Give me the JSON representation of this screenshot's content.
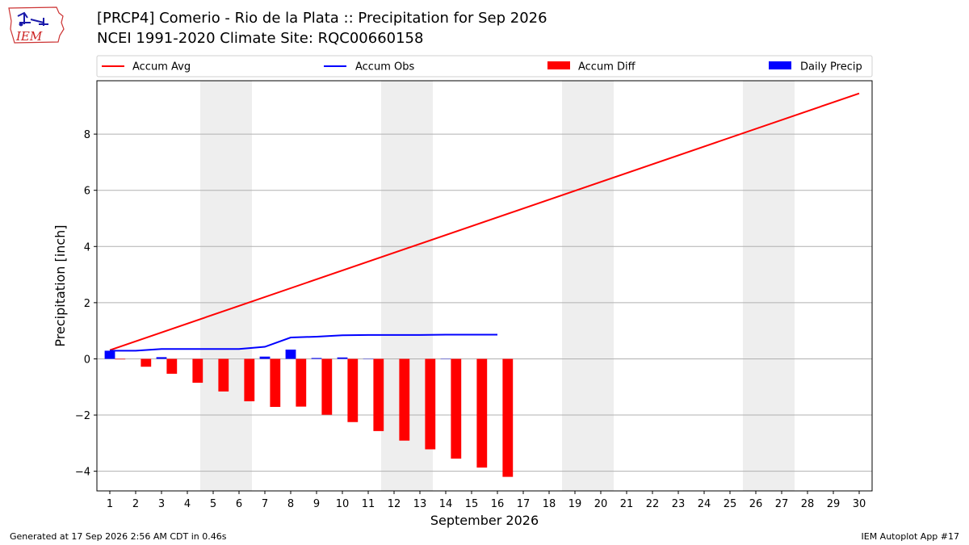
{
  "header": {
    "title_line1": "[PRCP4] Comerio - Rio de la Plata :: Precipitation for Sep 2026",
    "title_line2": "NCEI 1991-2020 Climate Site: RQC00660158"
  },
  "logo": {
    "text": "IEM"
  },
  "footer": {
    "generated": "Generated at 17 Sep 2026 2:56 AM CDT in 0.46s",
    "app": "IEM Autoplot App #17"
  },
  "colors": {
    "avg": "#ff0000",
    "obs": "#0000ff",
    "diff": "#ff0000",
    "daily": "#0000ff",
    "weekend": "#eeeeee",
    "grid": "#b0b0b0"
  },
  "chart_data": {
    "type": "bar",
    "xlabel": "September 2026",
    "ylabel": "Precipitation [inch]",
    "xlim": [
      0.5,
      30.5
    ],
    "ylim": [
      -4.7,
      9.9
    ],
    "yticks": [
      -4,
      -2,
      0,
      2,
      4,
      6,
      8
    ],
    "ytick_labels": [
      "−4",
      "−2",
      "0",
      "2",
      "4",
      "6",
      "8"
    ],
    "grid": true,
    "legend_placement": "top, above plot",
    "legend": [
      "Accum Avg",
      "Accum Obs",
      "Accum Diff",
      "Daily Precip"
    ],
    "x": [
      1,
      2,
      3,
      4,
      5,
      6,
      7,
      8,
      9,
      10,
      11,
      12,
      13,
      14,
      15,
      16,
      17,
      18,
      19,
      20,
      21,
      22,
      23,
      24,
      25,
      26,
      27,
      28,
      29,
      30
    ],
    "weekend_spans": [
      [
        4.5,
        6.5
      ],
      [
        11.5,
        13.5
      ],
      [
        18.5,
        20.5
      ],
      [
        25.5,
        27.5
      ]
    ],
    "series": [
      {
        "name": "Accum Avg",
        "kind": "line",
        "x": [
          1,
          30
        ],
        "values": [
          0.31,
          9.45
        ]
      },
      {
        "name": "Accum Obs",
        "kind": "line",
        "x": [
          1,
          2,
          3,
          4,
          5,
          6,
          7,
          8,
          9,
          10,
          11,
          12,
          13,
          14,
          15,
          16
        ],
        "values": [
          0.29,
          0.29,
          0.35,
          0.35,
          0.35,
          0.35,
          0.43,
          0.76,
          0.79,
          0.84,
          0.85,
          0.85,
          0.85,
          0.86,
          0.86,
          0.86
        ]
      },
      {
        "name": "Accum Diff",
        "kind": "bar",
        "x": [
          1,
          2,
          3,
          4,
          5,
          6,
          7,
          8,
          9,
          10,
          11,
          12,
          13,
          14,
          15,
          16
        ],
        "values": [
          -0.02,
          -0.28,
          -0.53,
          -0.85,
          -1.16,
          -1.51,
          -1.71,
          -1.7,
          -1.99,
          -2.25,
          -2.57,
          -2.91,
          -3.22,
          -3.55,
          -3.87,
          -4.2
        ]
      },
      {
        "name": "Daily Precip",
        "kind": "bar",
        "x": [
          1,
          2,
          3,
          4,
          5,
          6,
          7,
          8,
          9,
          10,
          11,
          12,
          13,
          14,
          15,
          16
        ],
        "values": [
          0.29,
          0.0,
          0.06,
          0.0,
          0.0,
          0.0,
          0.08,
          0.33,
          0.03,
          0.05,
          0.01,
          0.0,
          0.0,
          0.01,
          0.0,
          0.0
        ]
      }
    ]
  }
}
